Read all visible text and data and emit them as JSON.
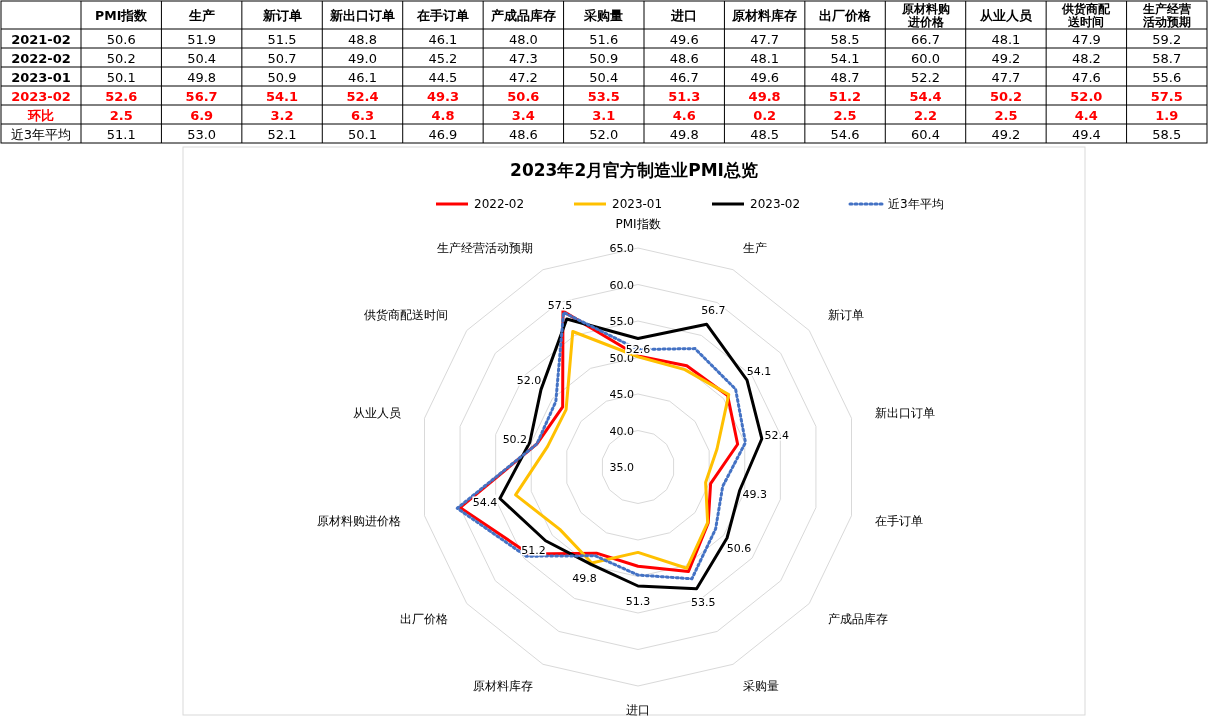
{
  "chart_data": [
    {
      "type": "heatmap",
      "categories": [
        "PMI指数",
        "生产",
        "新订单",
        "新出口订单",
        "在手订单",
        "产成品库存",
        "采购量",
        "进口",
        "原材料库存",
        "出厂价格",
        "原材料购进价格",
        "从业人员",
        "供货商配送时间",
        "生产经营活动预期"
      ],
      "y_categories": [
        "2021-02",
        "2022-02",
        "2023-01",
        "2023-02",
        "环比",
        "近3年平均"
      ],
      "cell_labels": [
        [
          "50.6",
          "51.9",
          "51.5",
          "48.8",
          "46.1",
          "48.0",
          "51.6",
          "49.6",
          "47.7",
          "58.5",
          "66.7",
          "48.1",
          "47.9",
          "59.2"
        ],
        [
          "50.2",
          "50.4",
          "50.7",
          "49.0",
          "45.2",
          "47.3",
          "50.9",
          "48.6",
          "48.1",
          "54.1",
          "60.0",
          "49.2",
          "48.2",
          "58.7"
        ],
        [
          "50.1",
          "49.8",
          "50.9",
          "46.1",
          "44.5",
          "47.2",
          "50.4",
          "46.7",
          "49.6",
          "48.7",
          "52.2",
          "47.7",
          "47.6",
          "55.6"
        ],
        [
          "52.6",
          "56.7",
          "54.1",
          "52.4",
          "49.3",
          "50.6",
          "53.5",
          "51.3",
          "49.8",
          "51.2",
          "54.4",
          "50.2",
          "52.0",
          "57.5"
        ],
        [
          "2.5",
          "6.9",
          "3.2",
          "6.3",
          "4.8",
          "3.4",
          "3.1",
          "4.6",
          "0.2",
          "2.5",
          "2.2",
          "2.5",
          "4.4",
          "1.9"
        ],
        [
          "51.1",
          "53.0",
          "52.1",
          "50.1",
          "46.9",
          "48.6",
          "52.0",
          "49.8",
          "48.5",
          "54.6",
          "60.4",
          "49.2",
          "49.4",
          "58.5"
        ]
      ],
      "colors": [
        "#000000",
        "#000000",
        "#000000",
        "#ff0000",
        "#ff0000",
        "#000000"
      ],
      "cells": [
        [
          50.6,
          51.9,
          51.5,
          48.8,
          46.1,
          48.0,
          51.6,
          49.6,
          47.7,
          58.5,
          66.7,
          48.1,
          47.9,
          59.2
        ],
        [
          50.2,
          50.4,
          50.7,
          49.0,
          45.2,
          47.3,
          50.9,
          48.6,
          48.1,
          54.1,
          60.0,
          49.2,
          48.2,
          58.7
        ],
        [
          50.1,
          49.8,
          50.9,
          46.1,
          44.5,
          47.2,
          50.4,
          46.7,
          49.6,
          48.7,
          52.2,
          47.7,
          47.6,
          55.6
        ],
        [
          52.6,
          56.7,
          54.1,
          52.4,
          49.3,
          50.6,
          53.5,
          51.3,
          49.8,
          51.2,
          54.4,
          50.2,
          52.0,
          57.5
        ],
        [
          2.5,
          6.9,
          3.2,
          6.3,
          4.8,
          3.4,
          3.1,
          4.6,
          0.2,
          2.5,
          2.2,
          2.5,
          4.4,
          1.9
        ],
        [
          51.1,
          53.0,
          52.1,
          50.1,
          46.9,
          48.6,
          52.0,
          49.8,
          48.5,
          54.6,
          60.4,
          49.2,
          49.4,
          58.5
        ]
      ]
    },
    {
      "type": "radar",
      "title": "2023年2月官方制造业PMI总览",
      "categories": [
        "PMI指数",
        "生产",
        "新订单",
        "新出口订单",
        "在手订单",
        "产成品库存",
        "采购量",
        "进口",
        "原材料库存",
        "出厂价格",
        "原材料购进价格",
        "从业人员",
        "供货商配送时间",
        "生产经营活动预期"
      ],
      "ylim": [
        35,
        65
      ],
      "yticks": [
        {
          "value": 35,
          "label": "35.0"
        },
        {
          "value": 40,
          "label": "40.0"
        },
        {
          "value": 45,
          "label": "45.0"
        },
        {
          "value": 50,
          "label": "50.0"
        },
        {
          "value": 55,
          "label": "55.0"
        },
        {
          "value": 60,
          "label": "60.0"
        },
        {
          "value": 65,
          "label": "65.0"
        }
      ],
      "legend": "top",
      "grid": true,
      "series": [
        {
          "name": "2022-02",
          "color": "#ff0000",
          "line_style": "solid",
          "values": [
            50.2,
            50.4,
            50.7,
            49.0,
            45.2,
            47.3,
            50.9,
            48.6,
            48.1,
            54.1,
            60.0,
            49.2,
            48.2,
            58.7
          ]
        },
        {
          "name": "2023-01",
          "color": "#ffc000",
          "line_style": "solid",
          "values": [
            50.1,
            49.8,
            50.9,
            46.1,
            44.5,
            47.2,
            50.4,
            46.7,
            49.6,
            48.7,
            52.2,
            47.7,
            47.6,
            55.6
          ]
        },
        {
          "name": "2023-02",
          "color": "#000000",
          "line_style": "solid",
          "values": [
            52.6,
            56.7,
            54.1,
            52.4,
            49.3,
            50.6,
            53.5,
            51.3,
            49.8,
            51.2,
            54.4,
            50.2,
            52.0,
            57.5
          ],
          "value_labels": [
            "52.6",
            "56.7",
            "54.1",
            "52.4",
            "49.3",
            "50.6",
            "53.5",
            "51.3",
            "49.8",
            "51.2",
            "54.4",
            "50.2",
            "52.0",
            "57.5"
          ]
        },
        {
          "name": "近3年平均",
          "color": "#4472c4",
          "line_style": "dotted",
          "values": [
            51.1,
            53.0,
            52.1,
            50.1,
            46.9,
            48.6,
            52.0,
            49.8,
            48.5,
            54.6,
            60.4,
            49.2,
            49.4,
            58.5
          ]
        }
      ]
    }
  ]
}
